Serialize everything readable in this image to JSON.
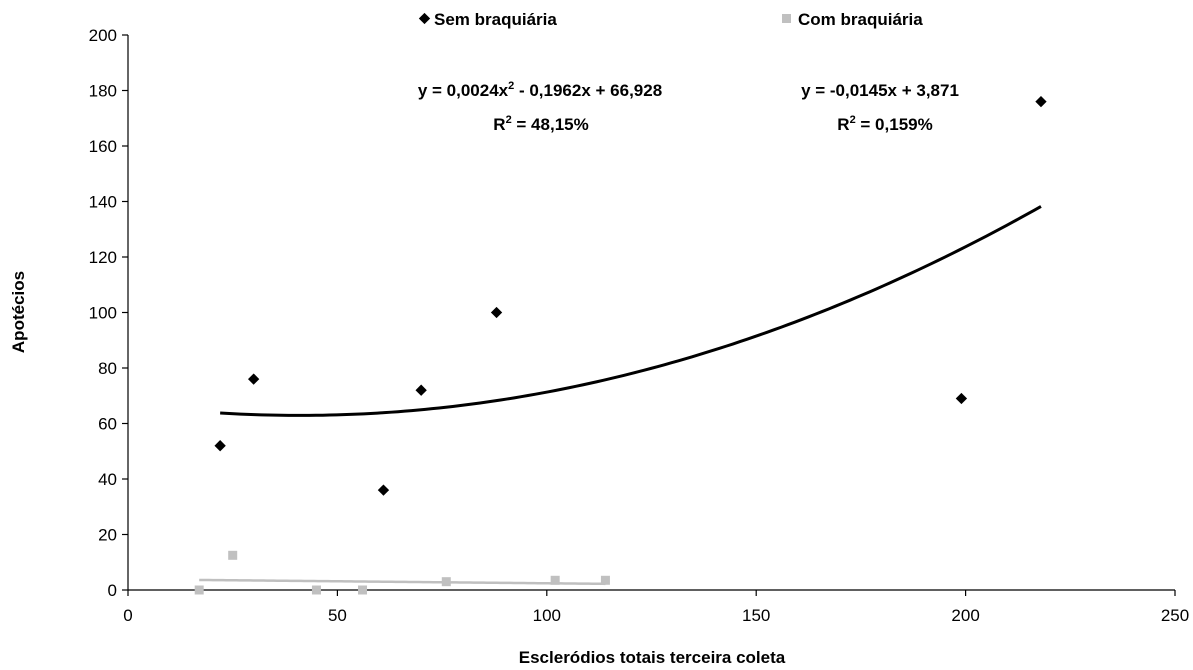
{
  "chart_data": {
    "type": "scatter",
    "xlabel": "Escleródios totais terceira coleta",
    "ylabel": "Apotécios",
    "xlim": [
      0,
      250
    ],
    "ylim": [
      0,
      200
    ],
    "x_ticks": [
      0,
      50,
      100,
      150,
      200,
      250
    ],
    "y_ticks": [
      0,
      20,
      40,
      60,
      80,
      100,
      120,
      140,
      160,
      180,
      200
    ],
    "grid": false,
    "legend_position": "top",
    "series": [
      {
        "name": "Sem braquiária",
        "marker": "diamond",
        "color": "#000000",
        "points": [
          {
            "x": 22,
            "y": 52
          },
          {
            "x": 30,
            "y": 76
          },
          {
            "x": 61,
            "y": 36
          },
          {
            "x": 70,
            "y": 72
          },
          {
            "x": 88,
            "y": 100
          },
          {
            "x": 199,
            "y": 69
          },
          {
            "x": 218,
            "y": 176
          }
        ],
        "trendline": {
          "kind": "polynomial",
          "equation": "y = 0,0024x",
          "equation_sup": "2",
          "equation_rest": " - 0,1962x + 66,928",
          "r2_prefix": "R",
          "r2_sup": "2",
          "r2_rest": " = 48,15%",
          "coefficients": [
            0.0024,
            -0.1962,
            66.928
          ],
          "x_range": [
            22,
            218
          ]
        }
      },
      {
        "name": "Com braquiária",
        "marker": "square",
        "color": "#c0c0c0",
        "points": [
          {
            "x": 17,
            "y": 0
          },
          {
            "x": 25,
            "y": 12.5
          },
          {
            "x": 45,
            "y": 0
          },
          {
            "x": 56,
            "y": 0
          },
          {
            "x": 76,
            "y": 3
          },
          {
            "x": 102,
            "y": 3.5
          },
          {
            "x": 114,
            "y": 3.5
          }
        ],
        "trendline": {
          "kind": "linear",
          "equation": "y = -0,0145x + 3,871",
          "r2_prefix": "R",
          "r2_sup": "2",
          "r2_rest": " = 0,159%",
          "coefficients": [
            -0.0145,
            3.871
          ],
          "x_range": [
            17,
            114
          ]
        }
      }
    ]
  }
}
